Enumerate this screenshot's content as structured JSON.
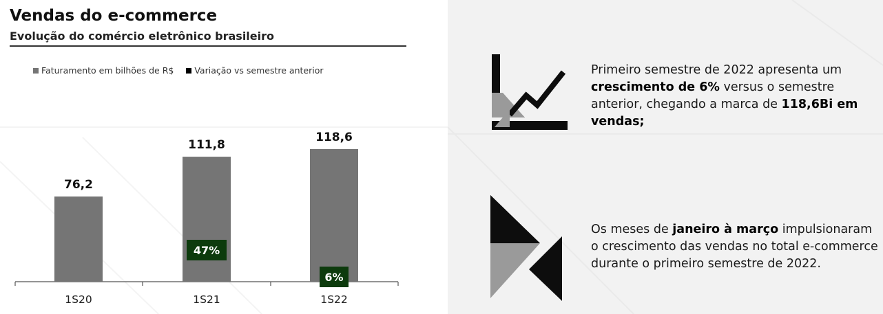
{
  "title": "Vendas do e-commerce",
  "subtitle": "Evolução do comércio eletrônico brasileiro",
  "legend": [
    {
      "label": "Faturamento em bilhões de R$",
      "color": "#757575"
    },
    {
      "label": "Variação vs semestre anterior",
      "color": "#000000"
    }
  ],
  "colors": {
    "bar": "#757575",
    "badge": "#0d3b0d",
    "right_panel_bg": "#f2f2f2"
  },
  "chart_data": {
    "type": "bar",
    "categories": [
      "1S20",
      "1S21",
      "1S22"
    ],
    "series": [
      {
        "name": "Faturamento em bilhões de R$",
        "values": [
          76.2,
          111.8,
          118.6
        ]
      },
      {
        "name": "Variação vs semestre anterior",
        "values": [
          null,
          47,
          6
        ]
      }
    ],
    "value_labels": [
      "76,2",
      "111,8",
      "118,6"
    ],
    "variation_labels": [
      null,
      "47%",
      "6%"
    ],
    "ylim": [
      0,
      130
    ],
    "grid": false
  },
  "insights": [
    {
      "icon": "growth-chart-icon",
      "parts": [
        {
          "text": "Primeiro semestre de 2022 apresenta um ",
          "bold": false
        },
        {
          "text": "crescimento de 6%",
          "bold": true
        },
        {
          "text": " versus o semestre anterior, chegando a marca de ",
          "bold": false
        },
        {
          "text": "118,6Bi em vendas;",
          "bold": true
        }
      ]
    },
    {
      "icon": "calendar-shapes-icon",
      "parts": [
        {
          "text": "Os meses de ",
          "bold": false
        },
        {
          "text": "janeiro à março",
          "bold": true
        },
        {
          "text": " impulsionaram o crescimento das vendas no total e-commerce durante o primeiro semestre de 2022.",
          "bold": false
        }
      ]
    }
  ]
}
